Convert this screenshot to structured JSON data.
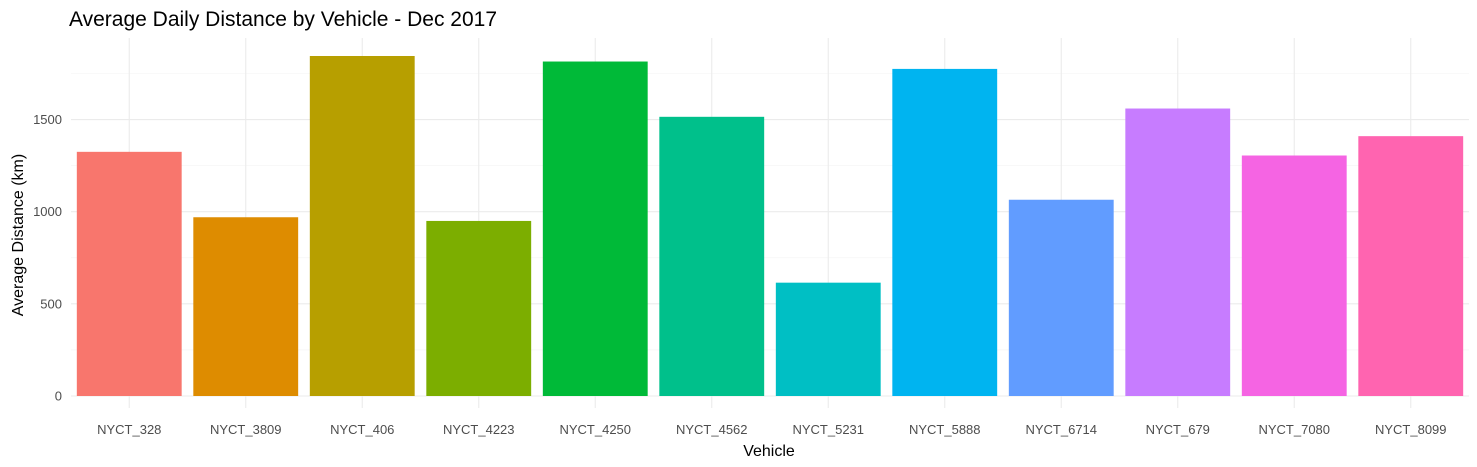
{
  "chart_data": {
    "type": "bar",
    "title": "Average Daily Distance by Vehicle - Dec 2017",
    "xlabel": "Vehicle",
    "ylabel": "Average Distance (km)",
    "categories": [
      "NYCT_328",
      "NYCT_3809",
      "NYCT_406",
      "NYCT_4223",
      "NYCT_4250",
      "NYCT_4562",
      "NYCT_5231",
      "NYCT_5888",
      "NYCT_6714",
      "NYCT_679",
      "NYCT_7080",
      "NYCT_8099"
    ],
    "values": [
      1325,
      970,
      1845,
      950,
      1815,
      1515,
      615,
      1775,
      1065,
      1560,
      1305,
      1410
    ],
    "colors": [
      "#F8766D",
      "#DE8C00",
      "#B79F00",
      "#7CAE00",
      "#00BA38",
      "#00C08B",
      "#00BFC4",
      "#00B4F0",
      "#619CFF",
      "#C77CFF",
      "#F564E3",
      "#FF64B0"
    ],
    "yticks": [
      0,
      500,
      1000,
      1500
    ],
    "ylim": [
      0,
      1845
    ],
    "grid": true,
    "legend": "none"
  }
}
